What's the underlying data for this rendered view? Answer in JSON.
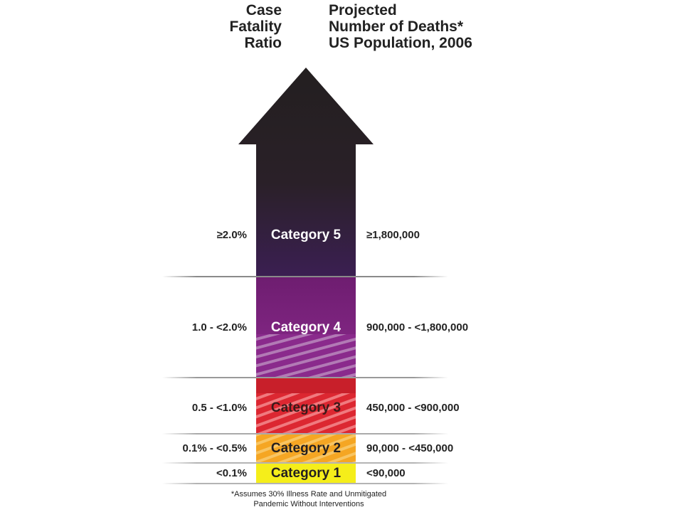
{
  "header": {
    "left": [
      "Case",
      "Fatality",
      "Ratio"
    ],
    "right": [
      "Projected",
      "Number of Deaths*",
      "US Population, 2006"
    ]
  },
  "categories": [
    {
      "label": "Category 5",
      "cfr": "≥2.0%",
      "deaths": "≥1,800,000",
      "color": "#2c1f3a"
    },
    {
      "label": "Category 4",
      "cfr": "1.0 - <2.0%",
      "deaths": "900,000 - <1,800,000",
      "color": "#7a1f7a"
    },
    {
      "label": "Category 3",
      "cfr": "0.5 - <1.0%",
      "deaths": "450,000 - <900,000",
      "color": "#c81f2a"
    },
    {
      "label": "Category 2",
      "cfr": "0.1% - <0.5%",
      "deaths": "90,000 - <450,000",
      "color": "#f2a51f"
    },
    {
      "label": "Category 1",
      "cfr": "<0.1%",
      "deaths": "<90,000",
      "color": "#f5ee1a"
    }
  ],
  "footnote": [
    "*Assumes 30% Illness Rate and Unmitigated",
    "Pandemic Without Interventions"
  ]
}
